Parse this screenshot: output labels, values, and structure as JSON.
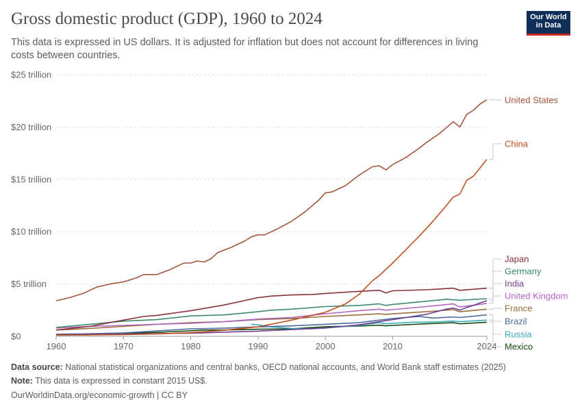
{
  "header": {
    "title": "Gross domestic product (GDP), 1960 to 2024",
    "subtitle": "This data is expressed in US dollars. It is adjusted for inflation but does not account for differences in living costs between countries.",
    "logo_line1": "Our World",
    "logo_line2": "in Data"
  },
  "footer": {
    "source_label": "Data source:",
    "source_text": "National statistical organizations and central banks, OECD national accounts, and World Bank staff estimates (2025)",
    "note_label": "Note:",
    "note_text": "This data is expressed in constant 2015 US$.",
    "link_text": "OurWorldinData.org/economic-growth | CC BY"
  },
  "chart_data": {
    "type": "line",
    "title": "Gross domestic product (GDP), 1960 to 2024",
    "xlim": [
      1960,
      2024
    ],
    "ylim": [
      0,
      25
    ],
    "x_ticks": [
      1960,
      1970,
      1980,
      1990,
      2000,
      2010,
      2024
    ],
    "x_tick_labels": [
      "1960",
      "1970",
      "1980",
      "1990",
      "2000",
      "2010",
      "2024"
    ],
    "y_ticks": [
      0,
      5,
      10,
      15,
      20,
      25
    ],
    "y_tick_labels": [
      "$0",
      "$5 trillion",
      "$10 trillion",
      "$15 trillion",
      "$20 trillion",
      "$25 trillion"
    ],
    "grid": true,
    "legend_placement": "right",
    "series": [
      {
        "name": "United States",
        "color": "#a2543a",
        "points": [
          [
            1960,
            3.4
          ],
          [
            1962,
            3.7
          ],
          [
            1964,
            4.1
          ],
          [
            1966,
            4.7
          ],
          [
            1968,
            5.0
          ],
          [
            1970,
            5.2
          ],
          [
            1972,
            5.6
          ],
          [
            1973,
            5.9
          ],
          [
            1975,
            5.9
          ],
          [
            1977,
            6.4
          ],
          [
            1979,
            7.0
          ],
          [
            1980,
            7.0
          ],
          [
            1981,
            7.2
          ],
          [
            1982,
            7.1
          ],
          [
            1983,
            7.4
          ],
          [
            1984,
            8.0
          ],
          [
            1986,
            8.5
          ],
          [
            1988,
            9.1
          ],
          [
            1989,
            9.5
          ],
          [
            1990,
            9.7
          ],
          [
            1991,
            9.7
          ],
          [
            1993,
            10.3
          ],
          [
            1995,
            11.0
          ],
          [
            1997,
            11.9
          ],
          [
            1999,
            13.0
          ],
          [
            2000,
            13.7
          ],
          [
            2001,
            13.8
          ],
          [
            2003,
            14.4
          ],
          [
            2005,
            15.4
          ],
          [
            2007,
            16.2
          ],
          [
            2008,
            16.3
          ],
          [
            2009,
            15.9
          ],
          [
            2010,
            16.4
          ],
          [
            2012,
            17.1
          ],
          [
            2014,
            18.0
          ],
          [
            2015,
            18.5
          ],
          [
            2017,
            19.4
          ],
          [
            2019,
            20.5
          ],
          [
            2020,
            20.0
          ],
          [
            2021,
            21.2
          ],
          [
            2022,
            21.6
          ],
          [
            2023,
            22.2
          ],
          [
            2024,
            22.6
          ]
        ]
      },
      {
        "name": "China",
        "color": "#c0501e",
        "points": [
          [
            1960,
            0.12
          ],
          [
            1965,
            0.13
          ],
          [
            1970,
            0.17
          ],
          [
            1975,
            0.23
          ],
          [
            1980,
            0.35
          ],
          [
            1985,
            0.58
          ],
          [
            1990,
            0.9
          ],
          [
            1995,
            1.55
          ],
          [
            2000,
            2.3
          ],
          [
            2003,
            3.1
          ],
          [
            2005,
            4.0
          ],
          [
            2007,
            5.3
          ],
          [
            2008,
            5.8
          ],
          [
            2010,
            7.0
          ],
          [
            2012,
            8.3
          ],
          [
            2014,
            9.6
          ],
          [
            2016,
            11.0
          ],
          [
            2018,
            12.5
          ],
          [
            2019,
            13.3
          ],
          [
            2020,
            13.6
          ],
          [
            2021,
            14.9
          ],
          [
            2022,
            15.3
          ],
          [
            2023,
            16.1
          ],
          [
            2024,
            16.9
          ]
        ]
      },
      {
        "name": "Japan",
        "color": "#883039",
        "points": [
          [
            1960,
            0.6
          ],
          [
            1965,
            0.95
          ],
          [
            1970,
            1.55
          ],
          [
            1973,
            1.9
          ],
          [
            1975,
            2.0
          ],
          [
            1980,
            2.45
          ],
          [
            1985,
            3.0
          ],
          [
            1990,
            3.7
          ],
          [
            1992,
            3.85
          ],
          [
            1995,
            3.95
          ],
          [
            1998,
            4.0
          ],
          [
            2000,
            4.1
          ],
          [
            2005,
            4.3
          ],
          [
            2008,
            4.4
          ],
          [
            2009,
            4.15
          ],
          [
            2010,
            4.35
          ],
          [
            2015,
            4.45
          ],
          [
            2019,
            4.6
          ],
          [
            2020,
            4.4
          ],
          [
            2024,
            4.6
          ]
        ]
      },
      {
        "name": "Germany",
        "color": "#3c8a6c",
        "points": [
          [
            1960,
            0.85
          ],
          [
            1965,
            1.15
          ],
          [
            1970,
            1.45
          ],
          [
            1975,
            1.6
          ],
          [
            1980,
            1.95
          ],
          [
            1985,
            2.05
          ],
          [
            1990,
            2.35
          ],
          [
            1992,
            2.5
          ],
          [
            1995,
            2.6
          ],
          [
            2000,
            2.85
          ],
          [
            2005,
            2.95
          ],
          [
            2008,
            3.1
          ],
          [
            2009,
            2.95
          ],
          [
            2010,
            3.05
          ],
          [
            2015,
            3.35
          ],
          [
            2018,
            3.55
          ],
          [
            2020,
            3.45
          ],
          [
            2024,
            3.6
          ]
        ]
      },
      {
        "name": "India",
        "color": "#6d3e91",
        "points": [
          [
            1960,
            0.15
          ],
          [
            1970,
            0.22
          ],
          [
            1980,
            0.3
          ],
          [
            1990,
            0.5
          ],
          [
            2000,
            0.8
          ],
          [
            2005,
            1.1
          ],
          [
            2010,
            1.6
          ],
          [
            2015,
            2.1
          ],
          [
            2018,
            2.6
          ],
          [
            2019,
            2.7
          ],
          [
            2020,
            2.5
          ],
          [
            2021,
            2.75
          ],
          [
            2022,
            2.95
          ],
          [
            2023,
            3.2
          ],
          [
            2024,
            3.4
          ]
        ]
      },
      {
        "name": "United Kingdom",
        "color": "#b066c1",
        "points": [
          [
            1960,
            0.8
          ],
          [
            1965,
            0.95
          ],
          [
            1970,
            1.05
          ],
          [
            1975,
            1.15
          ],
          [
            1980,
            1.25
          ],
          [
            1985,
            1.4
          ],
          [
            1990,
            1.65
          ],
          [
            1995,
            1.8
          ],
          [
            2000,
            2.15
          ],
          [
            2005,
            2.45
          ],
          [
            2008,
            2.6
          ],
          [
            2009,
            2.5
          ],
          [
            2010,
            2.55
          ],
          [
            2015,
            2.85
          ],
          [
            2019,
            3.1
          ],
          [
            2020,
            2.8
          ],
          [
            2024,
            3.15
          ]
        ]
      },
      {
        "name": "France",
        "color": "#996d39",
        "points": [
          [
            1960,
            0.6
          ],
          [
            1965,
            0.75
          ],
          [
            1970,
            0.95
          ],
          [
            1975,
            1.15
          ],
          [
            1980,
            1.3
          ],
          [
            1985,
            1.4
          ],
          [
            1990,
            1.6
          ],
          [
            1995,
            1.7
          ],
          [
            2000,
            1.9
          ],
          [
            2005,
            2.05
          ],
          [
            2008,
            2.15
          ],
          [
            2009,
            2.1
          ],
          [
            2010,
            2.15
          ],
          [
            2015,
            2.35
          ],
          [
            2019,
            2.55
          ],
          [
            2020,
            2.35
          ],
          [
            2024,
            2.6
          ]
        ]
      },
      {
        "name": "Brazil",
        "color": "#4c6a9c",
        "points": [
          [
            1960,
            0.2
          ],
          [
            1965,
            0.25
          ],
          [
            1970,
            0.33
          ],
          [
            1975,
            0.52
          ],
          [
            1980,
            0.72
          ],
          [
            1985,
            0.78
          ],
          [
            1990,
            0.9
          ],
          [
            1995,
            1.0
          ],
          [
            2000,
            1.15
          ],
          [
            2005,
            1.3
          ],
          [
            2008,
            1.55
          ],
          [
            2010,
            1.7
          ],
          [
            2013,
            1.85
          ],
          [
            2014,
            1.9
          ],
          [
            2016,
            1.75
          ],
          [
            2019,
            1.85
          ],
          [
            2020,
            1.8
          ],
          [
            2024,
            2.05
          ]
        ]
      },
      {
        "name": "Russia",
        "color": "#38aaba",
        "points": [
          [
            1989,
            1.15
          ],
          [
            1990,
            1.1
          ],
          [
            1992,
            0.9
          ],
          [
            1995,
            0.75
          ],
          [
            1998,
            0.72
          ],
          [
            2000,
            0.8
          ],
          [
            2005,
            1.05
          ],
          [
            2008,
            1.3
          ],
          [
            2009,
            1.2
          ],
          [
            2010,
            1.25
          ],
          [
            2013,
            1.35
          ],
          [
            2015,
            1.35
          ],
          [
            2019,
            1.45
          ],
          [
            2020,
            1.4
          ],
          [
            2024,
            1.55
          ]
        ]
      },
      {
        "name": "Mexico",
        "color": "#18470f",
        "points": [
          [
            1960,
            0.15
          ],
          [
            1965,
            0.2
          ],
          [
            1970,
            0.28
          ],
          [
            1975,
            0.38
          ],
          [
            1980,
            0.53
          ],
          [
            1982,
            0.6
          ],
          [
            1985,
            0.6
          ],
          [
            1990,
            0.68
          ],
          [
            1995,
            0.72
          ],
          [
            2000,
            0.92
          ],
          [
            2005,
            0.98
          ],
          [
            2008,
            1.07
          ],
          [
            2009,
            1.0
          ],
          [
            2010,
            1.05
          ],
          [
            2015,
            1.2
          ],
          [
            2019,
            1.3
          ],
          [
            2020,
            1.2
          ],
          [
            2024,
            1.35
          ]
        ]
      }
    ]
  }
}
